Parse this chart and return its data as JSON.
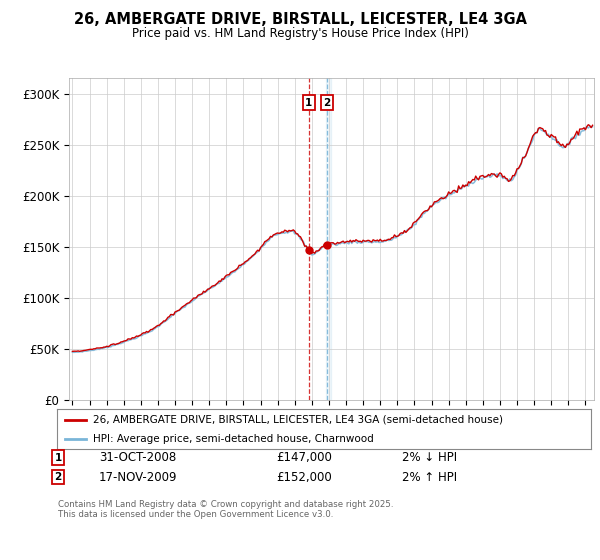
{
  "title": "26, AMBERGATE DRIVE, BIRSTALL, LEICESTER, LE4 3GA",
  "subtitle": "Price paid vs. HM Land Registry's House Price Index (HPI)",
  "ylabel_ticks": [
    "£0",
    "£50K",
    "£100K",
    "£150K",
    "£200K",
    "£250K",
    "£300K"
  ],
  "ytick_values": [
    0,
    50000,
    100000,
    150000,
    200000,
    250000,
    300000
  ],
  "ylim": [
    0,
    315000
  ],
  "xlim_start": 1994.8,
  "xlim_end": 2025.5,
  "hpi_color": "#7ab5d8",
  "price_color": "#cc0000",
  "marker1_date": 2008.83,
  "marker2_date": 2009.88,
  "marker1_value": 147000,
  "marker2_value": 152000,
  "legend_property": "26, AMBERGATE DRIVE, BIRSTALL, LEICESTER, LE4 3GA (semi-detached house)",
  "legend_hpi": "HPI: Average price, semi-detached house, Charnwood",
  "annotation1_date": "31-OCT-2008",
  "annotation1_price": "£147,000",
  "annotation1_hpi": "2% ↓ HPI",
  "annotation2_date": "17-NOV-2009",
  "annotation2_price": "£152,000",
  "annotation2_hpi": "2% ↑ HPI",
  "footnote": "Contains HM Land Registry data © Crown copyright and database right 2025.\nThis data is licensed under the Open Government Licence v3.0.",
  "background_color": "#ffffff",
  "grid_color": "#cccccc"
}
